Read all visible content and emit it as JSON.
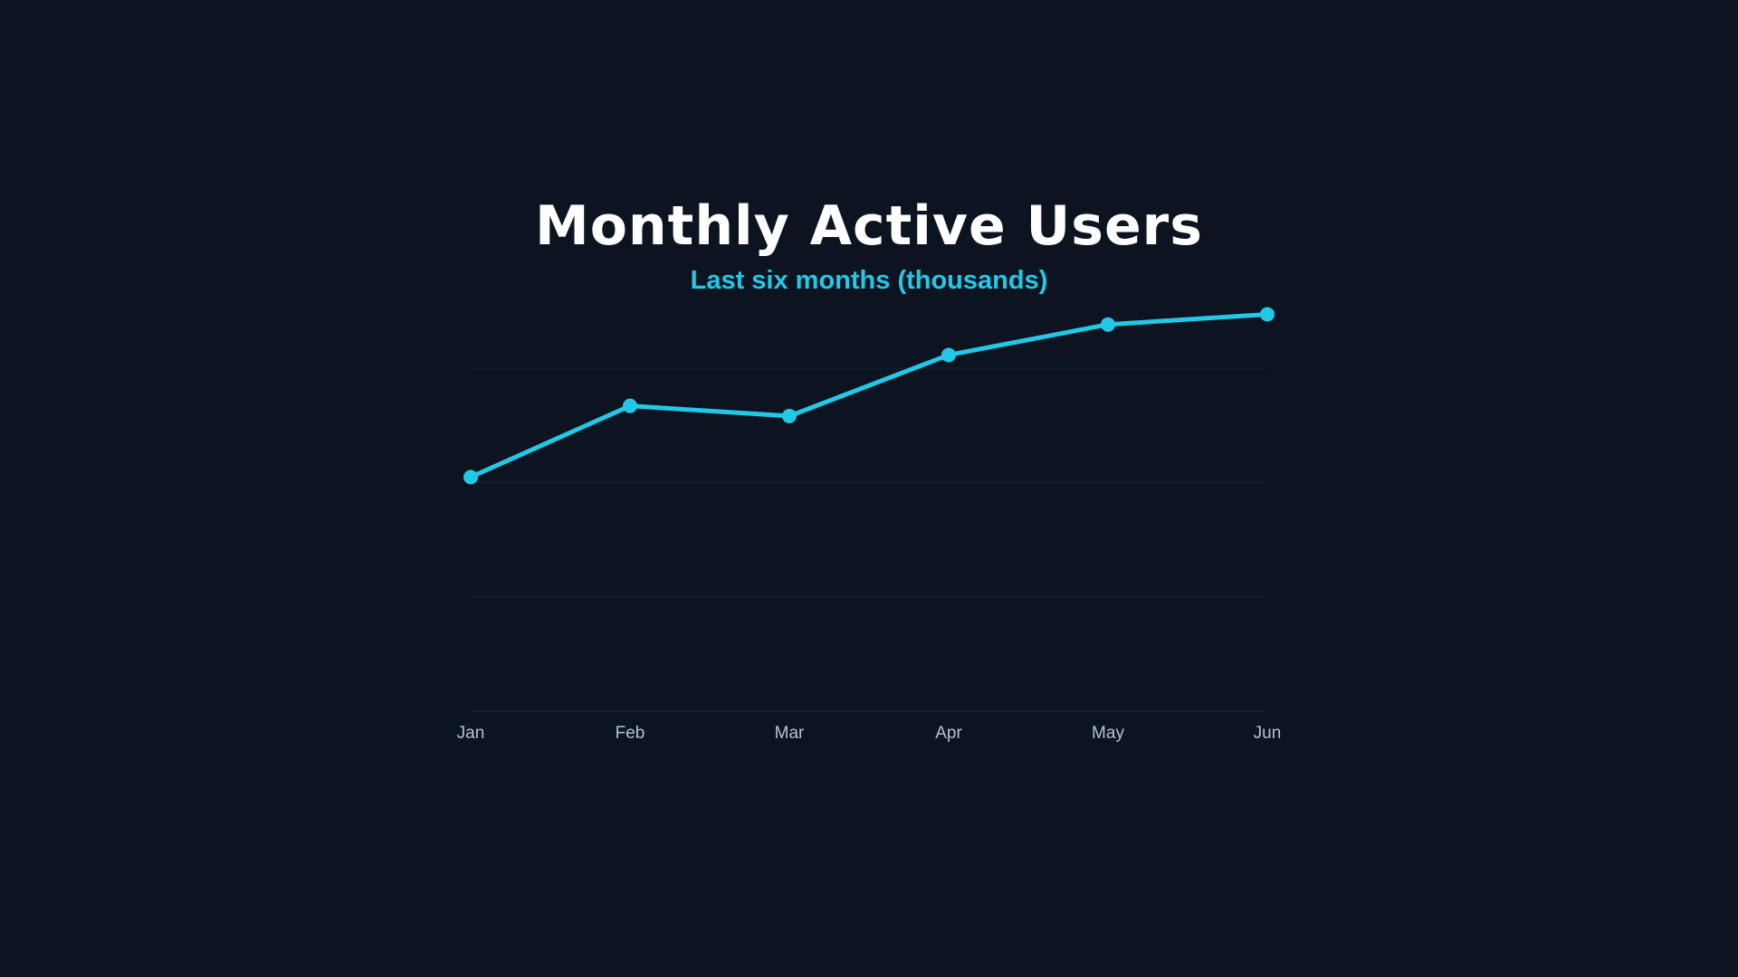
{
  "title": "Monthly Active Users",
  "subtitle": "Last six months (thousands)",
  "colors": {
    "background": "#0b1420",
    "line": "#22c9e6",
    "grid": "#1a2533",
    "title": "#ffffff",
    "tick_label": "#b8c2cc"
  },
  "chart_data": {
    "type": "line",
    "title": "Monthly Active Users",
    "subtitle": "Last six months (thousands)",
    "categories": [
      "Jan",
      "Feb",
      "Mar",
      "Apr",
      "May",
      "Jun"
    ],
    "series": [
      {
        "values": [
          46,
          60,
          58,
          70,
          76,
          78
        ]
      }
    ],
    "xlabel": "",
    "ylabel": "",
    "ylim": [
      0,
      90
    ],
    "grid": true,
    "legend": "none"
  }
}
